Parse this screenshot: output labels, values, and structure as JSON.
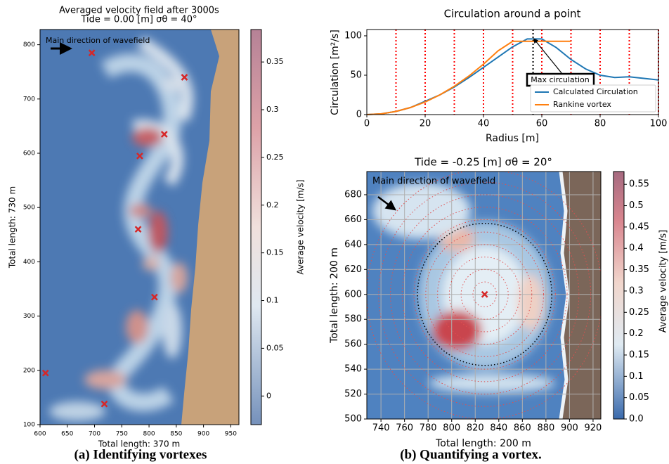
{
  "chart_data": [
    {
      "type": "heatmap",
      "title": "Averaged velocity field after 3000s",
      "subtitle": "Tide = 0.00 [m]   σθ = 40°",
      "xlabel": "Total length: 370 m",
      "ylabel": "Total length: 730 m",
      "xlim": [
        600,
        965
      ],
      "ylim": [
        100,
        828
      ],
      "xticks": [
        600,
        650,
        700,
        750,
        800,
        850,
        900,
        950
      ],
      "yticks": [
        100,
        200,
        300,
        400,
        500,
        600,
        700,
        800
      ],
      "annotation": "Main direction of wavefield",
      "points": {
        "color": "#d62728",
        "x": [
          695,
          865,
          828,
          783,
          780,
          810,
          610,
          718
        ],
        "y": [
          785,
          740,
          635,
          595,
          460,
          335,
          195,
          138
        ]
      },
      "colorbar": {
        "label": "Average velocity [m/s]",
        "lim": [
          -0.03,
          0.384
        ],
        "ticks": [
          0,
          0.05,
          0.1,
          0.15,
          0.2,
          0.25,
          0.3,
          0.35
        ]
      }
    },
    {
      "type": "line",
      "title": "Circulation around a point",
      "xlabel": "Radius [m]",
      "ylabel": "Circulation [m²/s]",
      "x": [
        0,
        5,
        10,
        15,
        20,
        25,
        30,
        35,
        40,
        45,
        50,
        55,
        60,
        65,
        70,
        75,
        80,
        85,
        90,
        95,
        100
      ],
      "series": [
        {
          "name": "Calculated Circulation",
          "color": "#1f77b4",
          "values": [
            0,
            1,
            4,
            9,
            17,
            25,
            35,
            47,
            60,
            73,
            86,
            96,
            96,
            85,
            70,
            58,
            50,
            47,
            48,
            46,
            44
          ]
        },
        {
          "name": "Rankine vortex",
          "color": "#ff7f0e",
          "values": [
            0,
            1,
            4,
            9,
            16,
            25,
            36,
            49,
            64,
            81,
            93,
            93,
            93,
            93,
            93,
            null,
            null,
            null,
            null,
            null,
            null
          ]
        }
      ],
      "xlim": [
        0,
        100
      ],
      "ylim": [
        0,
        108
      ],
      "xticks": [
        0,
        20,
        40,
        60,
        80,
        100
      ],
      "yticks": [
        0,
        50,
        100
      ],
      "vlines": [
        10,
        20,
        30,
        40,
        50,
        60,
        70,
        80,
        90,
        100
      ],
      "vline_color": "#ff0000",
      "max_x": 57,
      "annotation": {
        "text": "Max circulation",
        "x": 57,
        "y": 98
      },
      "legend": "lower right"
    },
    {
      "type": "heatmap",
      "title": "Tide = -0.25 [m]   σθ = 20°",
      "xlabel": "Total length: 200 m",
      "ylabel": "Total length: 200 m",
      "xlim": [
        728,
        926.6
      ],
      "ylim": [
        500,
        698.6
      ],
      "xticks": [
        740,
        760,
        780,
        800,
        820,
        840,
        860,
        880,
        900,
        920
      ],
      "yticks": [
        500,
        520,
        540,
        560,
        580,
        600,
        620,
        640,
        660,
        680
      ],
      "grid": true,
      "annotation": "Main direction of wavefield",
      "points": {
        "color": "#d62728",
        "x": [
          828
        ],
        "y": [
          600
        ]
      },
      "circles": [
        10,
        20,
        30,
        40,
        50,
        60,
        70,
        80,
        90,
        100
      ],
      "max_radius": 57,
      "colorbar": {
        "label": "Average velocity [m/s]",
        "lim": [
          0,
          0.58
        ],
        "ticks": [
          {
            "value": 0,
            "label": "0.0"
          },
          0.05,
          0.1,
          0.15,
          0.2,
          0.25,
          0.3,
          0.35,
          0.4,
          0.45,
          0.5,
          0.55
        ]
      }
    }
  ],
  "captions": [
    "(a) Identifying vortexes",
    "(b) Quantifying a vortex."
  ]
}
